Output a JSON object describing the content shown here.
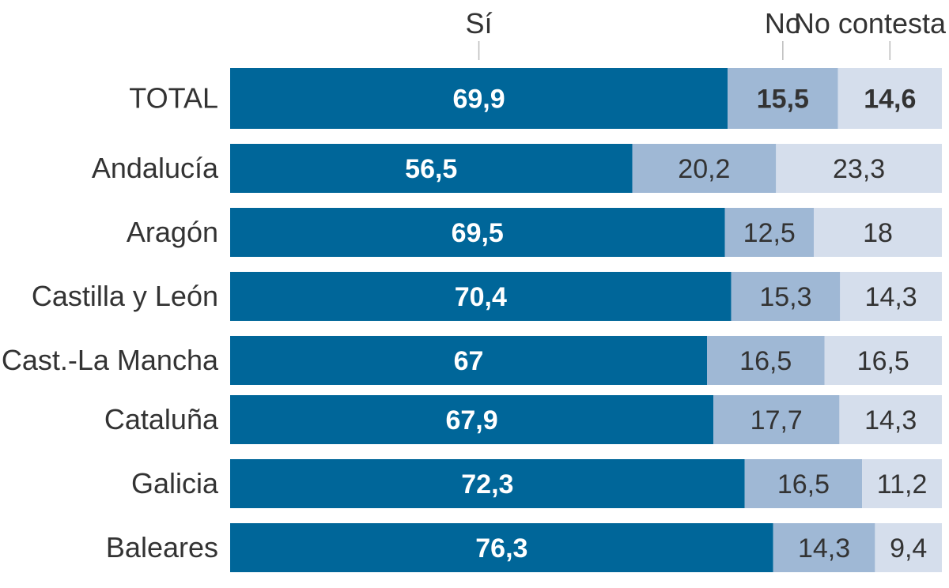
{
  "chart_data": {
    "type": "bar",
    "orientation": "horizontal",
    "stacked": true,
    "title": "",
    "xlabel": "",
    "ylabel": "",
    "xlim": [
      0,
      100
    ],
    "grid": false,
    "legend_position": "top",
    "categories": [
      "TOTAL",
      "Andalucía",
      "Aragón",
      "Castilla y León",
      "Cast.-La Mancha",
      "Cataluña",
      "Galicia",
      "Baleares"
    ],
    "series": [
      {
        "name": "Sí",
        "color": "#006699",
        "values": [
          69.9,
          56.5,
          69.5,
          70.4,
          67,
          67.9,
          72.3,
          76.3
        ],
        "labels": [
          "69,9",
          "56,5",
          "69,5",
          "70,4",
          "67",
          "67,9",
          "72,3",
          "76,3"
        ]
      },
      {
        "name": "No",
        "color": "#9fb8d5",
        "values": [
          15.5,
          20.2,
          12.5,
          15.3,
          16.5,
          17.7,
          16.5,
          14.3
        ],
        "labels": [
          "15,5",
          "20,2",
          "12,5",
          "15,3",
          "16,5",
          "17,7",
          "16,5",
          "14,3"
        ]
      },
      {
        "name": "No contesta",
        "color": "#d5deec",
        "values": [
          14.6,
          23.3,
          18,
          14.3,
          16.5,
          14.3,
          11.2,
          9.4
        ],
        "labels": [
          "14,6",
          "23,3",
          "18",
          "14,3",
          "16,5",
          "14,3",
          "11,2",
          "9,4"
        ]
      }
    ]
  }
}
